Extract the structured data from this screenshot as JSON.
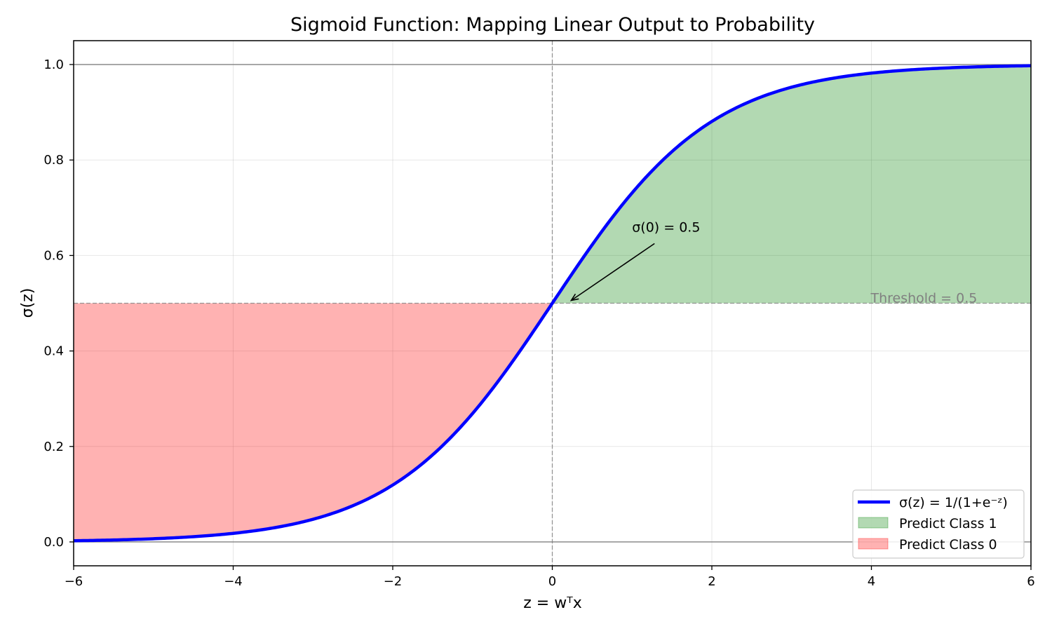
{
  "chart_data": {
    "type": "line",
    "title": "Sigmoid Function: Mapping Linear Output to Probability",
    "xlabel": "z = wᵀx",
    "ylabel": "σ(z)",
    "xlim": [
      -6,
      6
    ],
    "ylim": [
      -0.05,
      1.05
    ],
    "xticks": [
      -6,
      -4,
      -2,
      0,
      2,
      4,
      6
    ],
    "xtick_labels": [
      "−6",
      "−4",
      "−2",
      "0",
      "2",
      "4",
      "6"
    ],
    "yticks": [
      0.0,
      0.2,
      0.4,
      0.6,
      0.8,
      1.0
    ],
    "ytick_labels": [
      "0.0",
      "0.2",
      "0.4",
      "0.6",
      "0.8",
      "1.0"
    ],
    "grid": true,
    "legend_position": "lower right",
    "series": [
      {
        "name": "σ(z) = 1/(1+e⁻ᶻ)",
        "color": "#0000ff",
        "x": [
          -6,
          -5,
          -4,
          -3,
          -2,
          -1,
          0,
          1,
          2,
          3,
          4,
          5,
          6
        ],
        "values": [
          0.0025,
          0.0067,
          0.018,
          0.047,
          0.119,
          0.269,
          0.5,
          0.731,
          0.881,
          0.953,
          0.982,
          0.993,
          0.9975
        ]
      }
    ],
    "fills": [
      {
        "name": "Predict Class 1",
        "color": "#008000",
        "alpha": 0.3,
        "region": "z ≥ 0, between 0.5 and σ(z)"
      },
      {
        "name": "Predict Class 0",
        "color": "#ff0000",
        "alpha": 0.3,
        "region": "z ≤ 0, between σ(z) and 0.5"
      }
    ],
    "reference_lines": [
      {
        "type": "horizontal",
        "y": 0.5,
        "style": "dashed",
        "color": "#808080",
        "label": "Threshold = 0.5"
      },
      {
        "type": "vertical",
        "x": 0,
        "style": "dashed",
        "color": "#808080"
      },
      {
        "type": "horizontal",
        "y": 0,
        "style": "solid",
        "color": "#808080"
      },
      {
        "type": "horizontal",
        "y": 1,
        "style": "solid",
        "color": "#808080"
      }
    ],
    "annotations": [
      {
        "text": "σ(0) = 0.5",
        "xy": [
          0,
          0.5
        ],
        "xytext": [
          1,
          0.65
        ],
        "arrow": true
      },
      {
        "text": "Threshold = 0.5",
        "xy": [
          4,
          0.5
        ]
      }
    ]
  },
  "legend": {
    "items": [
      {
        "label": "σ(z) = 1/(1+e⁻ᶻ)"
      },
      {
        "label": "Predict Class 1"
      },
      {
        "label": "Predict Class 0"
      }
    ]
  }
}
